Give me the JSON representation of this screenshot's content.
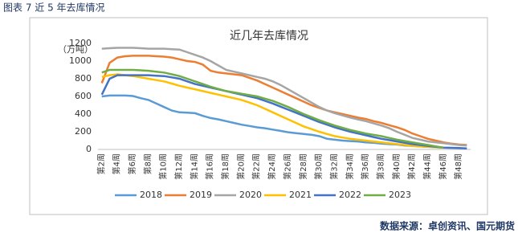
{
  "caption": "图表 7 近 5 年去库情况",
  "source": "数据来源：卓创资讯、国元期货",
  "chart_data": {
    "type": "line",
    "title": "近几年去库情况",
    "y_label": "（万吨）",
    "categories": [
      "第2周",
      null,
      "第4周",
      null,
      "第6周",
      null,
      "第8周",
      null,
      "第10周",
      null,
      "第12周",
      null,
      "第14周",
      null,
      "第16周",
      null,
      "第18周",
      null,
      "第20周",
      null,
      "第22周",
      null,
      "第24周",
      null,
      "第26周",
      null,
      "第28周",
      null,
      "第30周",
      null,
      "第32周",
      null,
      "第34周",
      null,
      "第36周",
      null,
      "第38周",
      null,
      "第40周",
      null,
      "第42周",
      null,
      "第44周",
      null,
      "第46周",
      null,
      "第48周",
      null
    ],
    "series": [
      {
        "name": "2018",
        "color": "#5b9bd5",
        "values": [
          600,
          610,
          610,
          610,
          605,
          580,
          560,
          520,
          480,
          440,
          420,
          415,
          410,
          380,
          355,
          340,
          320,
          300,
          280,
          265,
          250,
          240,
          225,
          210,
          195,
          185,
          175,
          165,
          150,
          120,
          110,
          100,
          95,
          90,
          80,
          75,
          65,
          60,
          55,
          45,
          40,
          35,
          30,
          25,
          20,
          null,
          null,
          null
        ]
      },
      {
        "name": "2019",
        "color": "#ed7d31",
        "values": [
          750,
          980,
          1040,
          1055,
          1060,
          1060,
          1060,
          1055,
          1050,
          1040,
          1020,
          1000,
          990,
          960,
          890,
          870,
          860,
          850,
          840,
          810,
          780,
          740,
          700,
          660,
          620,
          580,
          540,
          500,
          470,
          440,
          420,
          400,
          380,
          360,
          345,
          320,
          300,
          275,
          250,
          220,
          180,
          150,
          120,
          100,
          80,
          65,
          55,
          50
        ]
      },
      {
        "name": "2020",
        "color": "#a5a5a5",
        "values": [
          1140,
          1145,
          1150,
          1150,
          1150,
          1145,
          1140,
          1140,
          1140,
          1135,
          1130,
          1100,
          1070,
          1040,
          1000,
          950,
          900,
          880,
          860,
          840,
          820,
          800,
          770,
          730,
          680,
          630,
          580,
          530,
          480,
          440,
          410,
          385,
          360,
          340,
          320,
          295,
          270,
          240,
          200,
          165,
          130,
          110,
          90,
          80,
          70,
          60,
          50,
          45
        ]
      },
      {
        "name": "2021",
        "color": "#ffc000",
        "values": [
          820,
          840,
          850,
          840,
          830,
          815,
          800,
          785,
          770,
          745,
          720,
          700,
          680,
          660,
          640,
          620,
          600,
          580,
          560,
          530,
          500,
          460,
          420,
          380,
          340,
          300,
          260,
          230,
          200,
          175,
          150,
          135,
          120,
          110,
          100,
          90,
          80,
          70,
          60,
          50,
          40,
          35,
          30,
          25,
          20,
          null,
          null,
          null
        ]
      },
      {
        "name": "2022",
        "color": "#4472c4",
        "values": [
          620,
          800,
          840,
          840,
          840,
          840,
          840,
          835,
          830,
          815,
          800,
          770,
          740,
          720,
          700,
          680,
          660,
          640,
          620,
          600,
          580,
          550,
          520,
          485,
          450,
          415,
          380,
          345,
          310,
          280,
          250,
          225,
          200,
          180,
          160,
          140,
          120,
          105,
          90,
          75,
          60,
          50,
          40,
          30,
          20,
          18,
          15,
          12
        ]
      },
      {
        "name": "2023",
        "color": "#70ad47",
        "values": [
          870,
          900,
          900,
          900,
          900,
          895,
          890,
          880,
          870,
          850,
          830,
          800,
          770,
          740,
          710,
          685,
          660,
          645,
          630,
          615,
          600,
          575,
          550,
          515,
          480,
          440,
          400,
          365,
          330,
          300,
          270,
          245,
          220,
          200,
          180,
          165,
          150,
          130,
          110,
          95,
          80,
          65,
          50,
          35,
          20,
          null,
          null,
          null
        ]
      }
    ],
    "ylim": [
      0,
      1200
    ],
    "yticks": [
      0,
      200,
      400,
      600,
      800,
      1000,
      1200
    ],
    "grid": false,
    "legend": "bottom"
  }
}
